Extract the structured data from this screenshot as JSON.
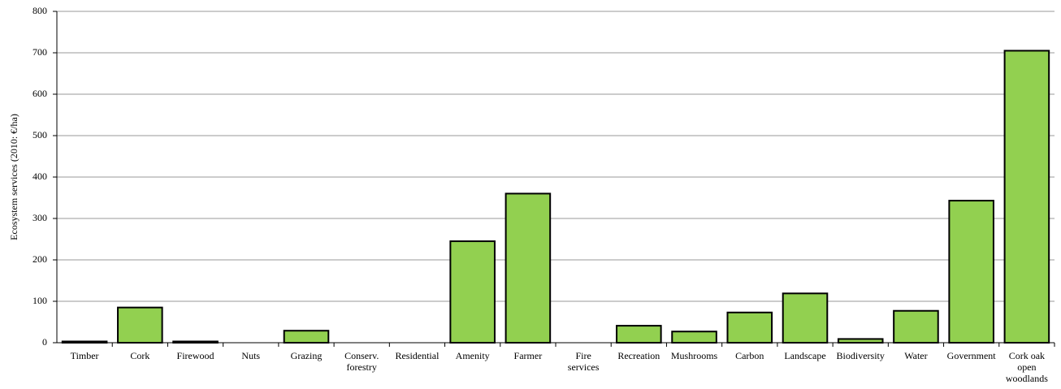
{
  "chart_data": {
    "type": "bar",
    "ylabel": "Ecosystem services (2010: €/ha)",
    "categories": [
      "Timber",
      "Cork",
      "Firewood",
      "Nuts",
      "Grazing",
      "Conserv. forestry",
      "Residential",
      "Amenity",
      "Farmer",
      "Fire services",
      "Recreation",
      "Mushrooms",
      "Carbon",
      "Landscape",
      "Biodiversity",
      "Water",
      "Government",
      "Cork oak open woodlands"
    ],
    "values": [
      3,
      85,
      3,
      0,
      29,
      0,
      0,
      245,
      360,
      0,
      41,
      27,
      73,
      119,
      9,
      77,
      343,
      705
    ],
    "color": "#92d050",
    "ylim": [
      0,
      800
    ],
    "yticks": [
      0,
      100,
      200,
      300,
      400,
      500,
      600,
      700,
      800
    ],
    "grid": true
  }
}
